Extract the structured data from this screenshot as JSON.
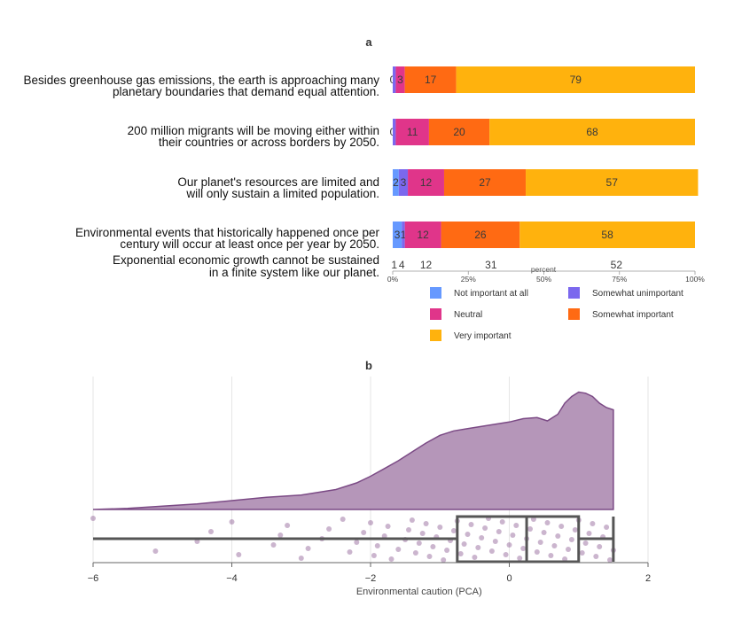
{
  "chart_data": [
    {
      "panel": "a",
      "type": "bar",
      "orientation": "horizontal",
      "stacked": true,
      "title": "a",
      "xlabel": "percent",
      "xlim": [
        0,
        100
      ],
      "xticks": [
        "0%",
        "25%",
        "50%",
        "75%",
        "100%"
      ],
      "legend_position": "bottom-right",
      "categories": [
        [
          "Besides greenhouse gas emissions, the earth is approaching many",
          "planetary boundaries that demand equal attention."
        ],
        [
          "200 million migrants will be moving either within",
          "their countries or across borders by 2050."
        ],
        [
          "Our planet's resources are limited and",
          "will only sustain a limited population."
        ],
        [
          "Environmental events that historically happened once per",
          "century will occur at least once per year by 2050."
        ],
        [
          "Exponential economic growth cannot be sustained",
          "in a finite system like our planet."
        ]
      ],
      "series": [
        {
          "name": "Not important at all",
          "color": "#6699ff",
          "values": [
            0,
            0,
            2,
            3,
            1
          ],
          "labels": [
            "0",
            "0",
            "2",
            "3",
            "1"
          ]
        },
        {
          "name": "Somewhat unimportant",
          "color": "#7b68ee",
          "values": [
            1,
            1,
            3,
            1,
            4
          ],
          "labels": [
            "",
            "",
            "3",
            "1",
            "4"
          ]
        },
        {
          "name": "Neutral",
          "color": "#e0358a",
          "values": [
            3,
            11,
            12,
            12,
            12
          ],
          "labels": [
            "3",
            "11",
            "12",
            "12",
            "12"
          ]
        },
        {
          "name": "Somewhat important",
          "color": "#ff6a13",
          "values": [
            17,
            20,
            27,
            26,
            31
          ],
          "labels": [
            "17",
            "20",
            "27",
            "26",
            "31"
          ]
        },
        {
          "name": "Very important",
          "color": "#ffb20d",
          "values": [
            79,
            68,
            57,
            58,
            52
          ],
          "labels": [
            "79",
            "68",
            "57",
            "58",
            "52"
          ]
        }
      ]
    },
    {
      "panel": "b",
      "type": "area",
      "subtype": "raincloud",
      "title": "b",
      "xlabel": "Environmental caution (PCA)",
      "xlim": [
        -6,
        2
      ],
      "xticks": [
        -6,
        -4,
        -2,
        0,
        2
      ],
      "grid": true,
      "colors": {
        "density_fill": "#b596b9",
        "density_line": "#7b4a85",
        "points": "#8b5a93",
        "box": "#555555"
      },
      "density": {
        "x": [
          -6.0,
          -5.5,
          -5.0,
          -4.5,
          -4.0,
          -3.5,
          -3.0,
          -2.5,
          -2.2,
          -2.0,
          -1.8,
          -1.6,
          -1.4,
          -1.2,
          -1.0,
          -0.8,
          -0.6,
          -0.4,
          -0.2,
          0.0,
          0.2,
          0.4,
          0.55,
          0.7,
          0.8,
          0.9,
          1.0,
          1.1,
          1.2,
          1.3,
          1.4,
          1.5
        ],
        "y": [
          0.0,
          0.01,
          0.03,
          0.05,
          0.08,
          0.11,
          0.13,
          0.18,
          0.24,
          0.3,
          0.37,
          0.44,
          0.52,
          0.6,
          0.67,
          0.71,
          0.73,
          0.75,
          0.77,
          0.79,
          0.82,
          0.83,
          0.8,
          0.86,
          0.96,
          1.02,
          1.06,
          1.05,
          1.02,
          0.96,
          0.92,
          0.9
        ]
      },
      "boxplot": {
        "min": -6.0,
        "q1": -0.75,
        "median": 0.25,
        "q3": 1.0,
        "max": 1.5
      },
      "points": [
        -6.0,
        -5.1,
        -4.5,
        -4.3,
        -4.0,
        -3.9,
        -3.4,
        -3.3,
        -3.2,
        -3.0,
        -2.9,
        -2.7,
        -2.6,
        -2.4,
        -2.3,
        -2.2,
        -2.1,
        -2.0,
        -1.95,
        -1.9,
        -1.8,
        -1.75,
        -1.7,
        -1.6,
        -1.5,
        -1.45,
        -1.4,
        -1.35,
        -1.3,
        -1.25,
        -1.2,
        -1.15,
        -1.1,
        -1.05,
        -1.0,
        -0.95,
        -0.9,
        -0.85,
        -0.8,
        -0.75,
        -0.7,
        -0.65,
        -0.6,
        -0.55,
        -0.5,
        -0.45,
        -0.4,
        -0.35,
        -0.3,
        -0.25,
        -0.2,
        -0.15,
        -0.1,
        -0.05,
        0.0,
        0.05,
        0.1,
        0.15,
        0.2,
        0.25,
        0.3,
        0.35,
        0.4,
        0.45,
        0.5,
        0.55,
        0.6,
        0.65,
        0.7,
        0.75,
        0.8,
        0.85,
        0.9,
        0.95,
        1.0,
        1.05,
        1.1,
        1.15,
        1.2,
        1.25,
        1.3,
        1.35,
        1.4,
        1.45,
        1.5
      ]
    }
  ]
}
